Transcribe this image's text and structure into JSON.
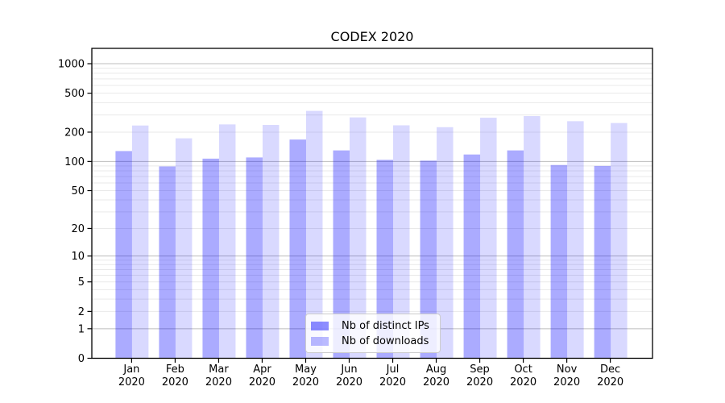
{
  "chart_data": {
    "type": "bar",
    "title": "CODEX 2020",
    "categories": [
      "Jan 2020",
      "Feb 2020",
      "Mar 2020",
      "Apr 2020",
      "May 2020",
      "Jun 2020",
      "Jul 2020",
      "Aug 2020",
      "Sep 2020",
      "Oct 2020",
      "Nov 2020",
      "Dec 2020"
    ],
    "series": [
      {
        "name": "Nb of distinct IPs",
        "color": "#0000ff",
        "opacity": 0.33,
        "values": [
          128,
          89,
          107,
          110,
          168,
          130,
          104,
          102,
          118,
          130,
          92,
          90
        ]
      },
      {
        "name": "Nb of downloads",
        "color": "#0000ff",
        "opacity": 0.15,
        "values": [
          234,
          173,
          240,
          237,
          330,
          283,
          235,
          225,
          281,
          292,
          259,
          248
        ]
      }
    ],
    "xlabel": "",
    "ylabel": "",
    "yscale": "symlog",
    "y_ticks": [
      0,
      1,
      2,
      5,
      10,
      20,
      50,
      100,
      200,
      500,
      1000
    ],
    "ylim": [
      0,
      1430
    ],
    "grid": true,
    "legend_position": "lower-center-inside"
  },
  "colors": {
    "bar_base": "#0000ff",
    "major_gridline": "#bdbdbd",
    "minor_gridline": "#e9e9e9",
    "axis": "#000000",
    "legend_border": "#cccccc",
    "legend_background": "rgba(255,255,255,0.8)"
  }
}
